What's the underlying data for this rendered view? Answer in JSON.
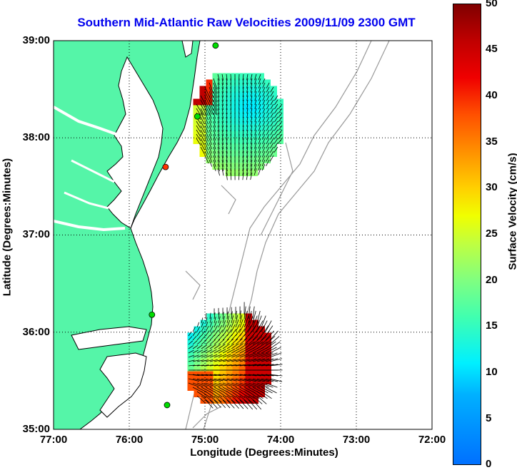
{
  "title": "Southern Mid-Atlantic Raw Velocities 2009/11/09 2300 GMT",
  "x_axis": {
    "label": "Longitude (Degrees:Minutes)",
    "ticks": [
      "77:00",
      "76:00",
      "75:00",
      "74:00",
      "73:00",
      "72:00"
    ]
  },
  "y_axis": {
    "label": "Latitude (Degrees:Minutes)",
    "ticks": [
      "39:00",
      "38:00",
      "37:00",
      "36:00",
      "35:00"
    ]
  },
  "colorbar": {
    "label": "Surface Velocity (cm/s)",
    "ticks": [
      "50",
      "45",
      "40",
      "35",
      "30",
      "25",
      "20",
      "15",
      "10",
      "5",
      "0"
    ],
    "range": [
      0,
      50
    ]
  },
  "colors": {
    "land": "#55f5a8",
    "title": "#0000ee",
    "bathymetry": "#999999",
    "station": "#00dd00",
    "station_alt": "#ff3300"
  },
  "map": {
    "lon_range": [
      -77,
      -72
    ],
    "lat_range": [
      35,
      39
    ],
    "grid": true,
    "stations": [
      {
        "lon": -74.86,
        "lat": 38.95,
        "color": "green"
      },
      {
        "lon": -75.1,
        "lat": 38.22,
        "color": "green"
      },
      {
        "lon": -75.52,
        "lat": 37.7,
        "color": "red"
      },
      {
        "lon": -75.7,
        "lat": 36.18,
        "color": "green"
      },
      {
        "lon": -75.5,
        "lat": 35.25,
        "color": "green"
      }
    ]
  }
}
